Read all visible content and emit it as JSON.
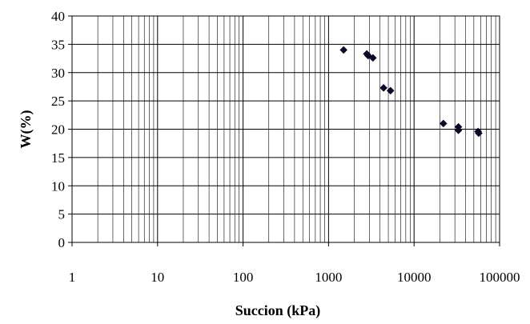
{
  "chart_data": {
    "type": "scatter",
    "title": "",
    "xlabel": "Succion (kPa)",
    "ylabel": "W(%)",
    "x_scale": "log",
    "xlim": [
      1,
      100000
    ],
    "ylim": [
      0,
      40
    ],
    "grid": true,
    "legend": "none",
    "x_tick_labels": [
      "1",
      "10",
      "100",
      "1000",
      "10000",
      "100000"
    ],
    "y_tick_labels": [
      "0",
      "5",
      "10",
      "15",
      "20",
      "25",
      "30",
      "35",
      "40"
    ],
    "x_tick_values": [
      1,
      10,
      100,
      1000,
      10000,
      100000
    ],
    "y_tick_values": [
      0,
      5,
      10,
      15,
      20,
      25,
      30,
      35,
      40
    ],
    "marker_color": "#0a0a2e",
    "series": [
      {
        "x": [
          1500,
          2800,
          2900,
          3300,
          4400,
          5300,
          22000,
          33000,
          33000,
          56000,
          57000
        ],
        "y": [
          34.0,
          33.3,
          33.0,
          32.6,
          27.3,
          26.8,
          21.0,
          20.4,
          19.8,
          19.6,
          19.3
        ]
      }
    ]
  }
}
